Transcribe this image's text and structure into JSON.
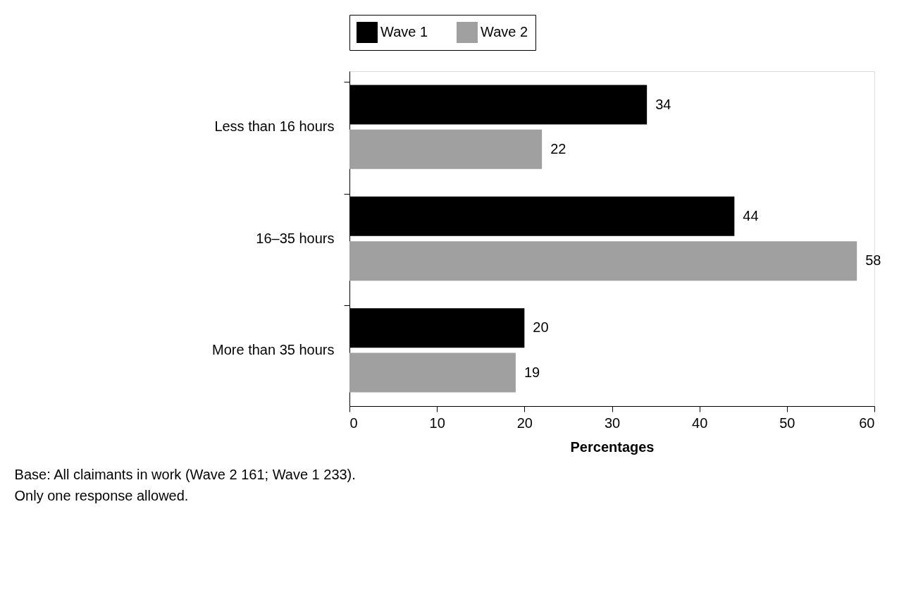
{
  "chart_data": {
    "type": "bar",
    "orientation": "horizontal",
    "xlabel": "Percentages",
    "categories": [
      "Less than 16 hours",
      "16–35 hours",
      "More than 35 hours"
    ],
    "series": [
      {
        "name": "Wave 1",
        "color": "#000000",
        "values": [
          34,
          44,
          20
        ]
      },
      {
        "name": "Wave 2",
        "color": "#a0a0a0",
        "values": [
          22,
          58,
          19
        ]
      }
    ],
    "xlim": [
      0,
      60
    ],
    "xticks": [
      0,
      10,
      20,
      30,
      40,
      50,
      60
    ],
    "data_labels": true,
    "legend": "top",
    "grid": false,
    "annotations": [
      "Base: All claimants in work (Wave 2 161; Wave 1 233).",
      "Only one response allowed."
    ]
  }
}
